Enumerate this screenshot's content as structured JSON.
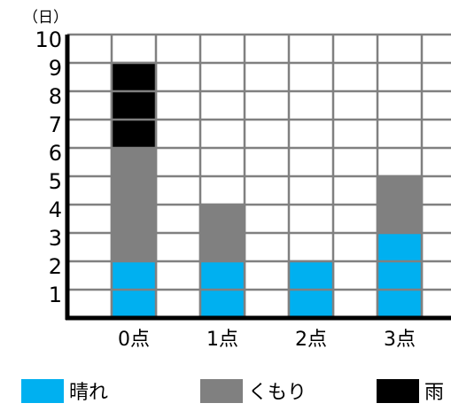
{
  "chart_data": {
    "type": "bar",
    "stacked": true,
    "unit_label": "（日）",
    "categories": [
      "0点",
      "1点",
      "2点",
      "3点"
    ],
    "series": [
      {
        "name": "晴れ",
        "color": "#00b0f0",
        "values": [
          2,
          2,
          2,
          3
        ]
      },
      {
        "name": "くもり",
        "color": "#808080",
        "values": [
          4,
          2,
          0,
          2
        ]
      },
      {
        "name": "雨",
        "color": "#000000",
        "values": [
          3,
          0,
          0,
          0
        ]
      }
    ],
    "yticks": [
      1,
      2,
      3,
      4,
      5,
      6,
      7,
      8,
      9,
      10
    ],
    "ylim": [
      0,
      10
    ],
    "grid": true,
    "legend": "bottom"
  }
}
